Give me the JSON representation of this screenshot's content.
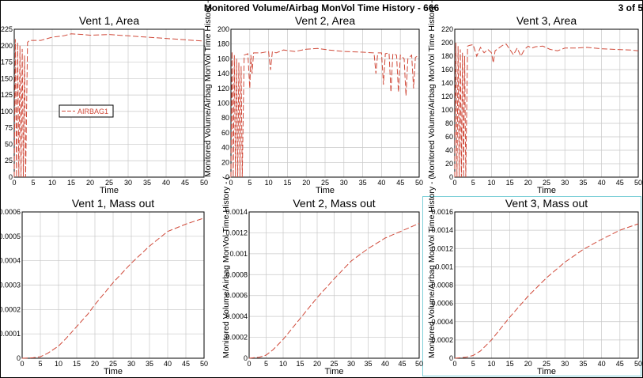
{
  "page": {
    "title": "Monitored Volume/Airbag MonVol Time History - 666",
    "page_indicator": "3 of 5"
  },
  "colors": {
    "series": "#d04a3a",
    "grid": "#c8c8c8",
    "axis": "#000000",
    "active_border": "#7fd0d8"
  },
  "chart_data": [
    {
      "type": "line",
      "title": "Vent 1, Area",
      "xlabel": "Time",
      "ylabel": "",
      "xlim": [
        0,
        50
      ],
      "ylim": [
        0,
        225
      ],
      "xticks": [
        0,
        5,
        10,
        15,
        20,
        25,
        30,
        35,
        40,
        45,
        50
      ],
      "yticks": [
        0,
        25,
        50,
        75,
        100,
        125,
        150,
        175,
        200,
        225
      ],
      "ytick_labels": [
        "0",
        "25",
        "50",
        "75",
        "100",
        "125",
        "150",
        "175",
        "200",
        "225"
      ],
      "legend": {
        "entries": [
          "AIRBAG1"
        ],
        "placement": "center-left"
      },
      "series": [
        {
          "name": "AIRBAG1",
          "x": [
            0,
            0.3,
            0.6,
            0.9,
            1.2,
            1.5,
            1.8,
            2.1,
            2.4,
            2.7,
            3.0,
            3.5,
            4,
            5,
            7,
            10,
            13,
            15,
            18,
            20,
            25,
            30,
            35,
            40,
            45,
            50
          ],
          "y": [
            0,
            210,
            0,
            205,
            0,
            200,
            0,
            195,
            0,
            185,
            0,
            205,
            208,
            208,
            208,
            213,
            215,
            218,
            217,
            216,
            217,
            215,
            213,
            211,
            209,
            207
          ]
        }
      ]
    },
    {
      "type": "line",
      "title": "Vent 2, Area",
      "xlabel": "Time",
      "ylabel": "Monitored Volume/Airbag MonVol Time History - (",
      "xlim": [
        0,
        50
      ],
      "ylim": [
        0,
        200
      ],
      "xticks": [
        0,
        5,
        10,
        15,
        20,
        25,
        30,
        35,
        40,
        45,
        50
      ],
      "yticks": [
        0,
        20,
        40,
        60,
        80,
        100,
        120,
        140,
        160,
        180,
        200
      ],
      "ytick_labels": [
        "0",
        "20",
        "40",
        "60",
        "80",
        "100",
        "120",
        "140",
        "160",
        "180",
        "200"
      ],
      "series": [
        {
          "name": "AIRBAG1",
          "x": [
            0,
            0.3,
            0.6,
            0.9,
            1.2,
            1.5,
            1.8,
            2.1,
            2.4,
            2.7,
            3.0,
            3.5,
            4.5,
            5.0,
            5.3,
            5.6,
            6.0,
            8,
            10,
            10.5,
            11,
            12,
            14,
            17,
            20,
            23,
            26,
            30,
            35,
            38,
            38.5,
            39,
            40,
            40.5,
            41,
            42,
            42.5,
            43,
            44,
            44.5,
            45,
            46,
            46.5,
            47,
            48,
            48.5,
            49,
            50
          ],
          "y": [
            0,
            170,
            0,
            165,
            0,
            160,
            0,
            155,
            0,
            150,
            0,
            165,
            167,
            120,
            165,
            140,
            168,
            168,
            170,
            145,
            170,
            168,
            172,
            170,
            173,
            174,
            172,
            170,
            169,
            168,
            140,
            168,
            168,
            125,
            167,
            168,
            115,
            167,
            165,
            115,
            165,
            160,
            110,
            160,
            165,
            120,
            162,
            165
          ]
        }
      ]
    },
    {
      "type": "line",
      "title": "Vent 3, Area",
      "xlabel": "Time",
      "ylabel": "Monitored Volume/Airbag MonVol Time History - (",
      "xlim": [
        0,
        50
      ],
      "ylim": [
        0,
        220
      ],
      "xticks": [
        0,
        5,
        10,
        15,
        20,
        25,
        30,
        35,
        40,
        45,
        50
      ],
      "yticks": [
        0,
        20,
        40,
        60,
        80,
        100,
        120,
        140,
        160,
        180,
        200,
        220
      ],
      "ytick_labels": [
        "0",
        "20",
        "40",
        "60",
        "80",
        "100",
        "120",
        "140",
        "160",
        "180",
        "200",
        "220"
      ],
      "series": [
        {
          "name": "AIRBAG1",
          "x": [
            0,
            0.3,
            0.6,
            0.9,
            1.2,
            1.5,
            1.8,
            2.1,
            2.4,
            2.7,
            3.0,
            3.5,
            4,
            5,
            6,
            7,
            8,
            9,
            10,
            10.5,
            11,
            12,
            13,
            14,
            15,
            16,
            17,
            18,
            19,
            20,
            21,
            22,
            24,
            26,
            28,
            30,
            33,
            36,
            40,
            44,
            48,
            50
          ],
          "y": [
            0,
            200,
            0,
            195,
            0,
            190,
            0,
            185,
            0,
            180,
            0,
            195,
            196,
            197,
            180,
            193,
            185,
            190,
            185,
            170,
            188,
            192,
            196,
            198,
            190,
            182,
            192,
            180,
            190,
            195,
            192,
            194,
            195,
            190,
            188,
            192,
            192,
            193,
            191,
            190,
            189,
            188
          ]
        }
      ]
    },
    {
      "type": "line",
      "title": "Vent 1, Mass out",
      "xlabel": "Time",
      "ylabel": "",
      "xlim": [
        0,
        50
      ],
      "ylim": [
        0,
        0.0006
      ],
      "xticks": [
        0,
        5,
        10,
        15,
        20,
        25,
        30,
        35,
        40,
        45,
        50
      ],
      "yticks": [
        0,
        0.0001,
        0.0002,
        0.0003,
        0.0004,
        0.0005,
        0.0006
      ],
      "ytick_labels": [
        "0",
        "0.0001",
        "0.0002",
        "0.0003",
        "0.0004",
        "0.0005",
        "0.0006"
      ],
      "series": [
        {
          "name": "AIRBAG1",
          "x": [
            0,
            3,
            5,
            7,
            10,
            12,
            15,
            18,
            20,
            25,
            30,
            35,
            40,
            45,
            50
          ],
          "y": [
            0,
            2e-06,
            6e-06,
            2e-05,
            5e-05,
            8e-05,
            0.00013,
            0.00018,
            0.00022,
            0.00031,
            0.00039,
            0.00046,
            0.00052,
            0.00055,
            0.000575
          ]
        }
      ]
    },
    {
      "type": "line",
      "title": "Vent 2, Mass out",
      "xlabel": "Time",
      "ylabel": "Monitored Volume/Airbag MonVol Time History - (",
      "xlim": [
        0,
        50
      ],
      "ylim": [
        0,
        0.0014
      ],
      "xticks": [
        0,
        5,
        10,
        15,
        20,
        25,
        30,
        35,
        40,
        45,
        50
      ],
      "yticks": [
        0,
        0.0002,
        0.0004,
        0.0006,
        0.0008,
        0.001,
        0.0012,
        0.0014
      ],
      "ytick_labels": [
        "0",
        "0.0002",
        "0.0004",
        "0.0006",
        "0.0008",
        "0.001",
        "0.0012",
        "0.0014"
      ],
      "series": [
        {
          "name": "AIRBAG1",
          "x": [
            0,
            3,
            5,
            7,
            10,
            15,
            20,
            25,
            30,
            35,
            40,
            45,
            50
          ],
          "y": [
            0,
            1e-05,
            3e-05,
            8e-05,
            0.00018,
            0.00038,
            0.00058,
            0.00076,
            0.00093,
            0.00105,
            0.00115,
            0.00122,
            0.00129
          ]
        }
      ]
    },
    {
      "type": "line",
      "title": "Vent 3, Mass out",
      "xlabel": "Time",
      "ylabel": "Monitored Volume/Airbag MonVol Time History - (",
      "xlim": [
        0,
        50
      ],
      "ylim": [
        0,
        0.0016
      ],
      "xticks": [
        0,
        5,
        10,
        15,
        20,
        25,
        30,
        35,
        40,
        45,
        50
      ],
      "yticks": [
        0,
        0.0002,
        0.0004,
        0.0006,
        0.0008,
        0.001,
        0.0012,
        0.0014,
        0.0016
      ],
      "ytick_labels": [
        "0",
        "0.0002",
        "0.0004",
        "0.0006",
        "0.0008",
        "0.001",
        "0.0012",
        "0.0014",
        "0.0016"
      ],
      "series": [
        {
          "name": "AIRBAG1",
          "x": [
            0,
            3,
            5,
            7,
            10,
            15,
            20,
            25,
            30,
            35,
            40,
            45,
            50
          ],
          "y": [
            0,
            1e-05,
            3e-05,
            8e-05,
            0.0002,
            0.00045,
            0.00068,
            0.00088,
            0.00105,
            0.00119,
            0.0013,
            0.0014,
            0.00147
          ]
        }
      ]
    }
  ]
}
